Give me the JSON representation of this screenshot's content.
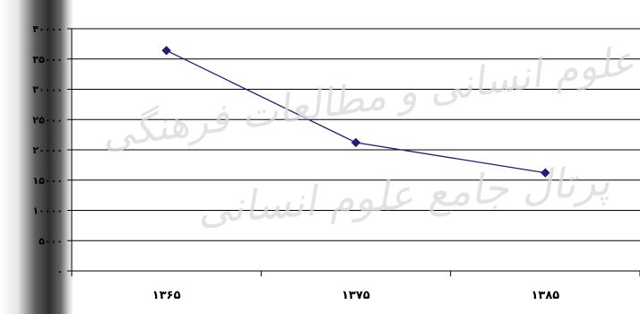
{
  "watermark": {
    "line1": "پژوهشگاه علوم انسانی و مطالعات فرهنگی",
    "line2": "پرتال جامع علوم انسانی"
  },
  "chart_data": {
    "type": "line",
    "title": "",
    "xlabel": "",
    "ylabel": "",
    "categories": [
      "۱۳۶۵",
      "۱۳۷۵",
      "۱۳۸۵"
    ],
    "series": [
      {
        "values": [
          36400,
          21200,
          16200
        ]
      }
    ],
    "ylim": [
      0,
      40000
    ],
    "yticks": [
      0,
      5000,
      10000,
      15000,
      20000,
      25000,
      30000,
      35000,
      40000
    ],
    "ytick_labels": [
      "۰",
      "۵۰۰۰",
      "۱۰۰۰۰",
      "۱۵۰۰۰",
      "۲۰۰۰۰",
      "۲۵۰۰۰",
      "۳۰۰۰۰",
      "۳۵۰۰۰",
      "۴۰۰۰۰"
    ],
    "grid": true,
    "legend": "none",
    "colors": {
      "line": "#1f1f7a",
      "marker": "#1f1f7a",
      "grid": "#000000",
      "plot_bg": "#ffffff"
    }
  }
}
